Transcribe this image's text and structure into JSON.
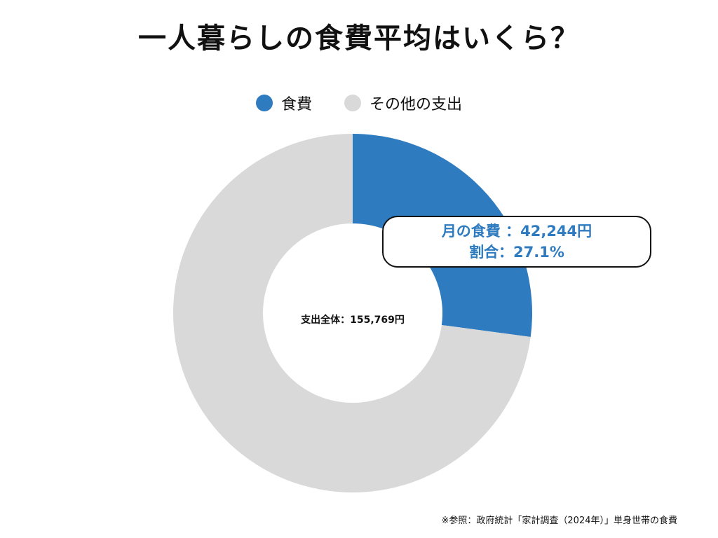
{
  "title": "一人暮らしの食費平均はいくら？",
  "source": "※参照：政府統計「家計調査（2024年）」単身世帯の食費",
  "center_label": "支出全体：155,769円",
  "callout": {
    "line1": "月の食費 ：42,244円",
    "line2": "割合：27.1%"
  },
  "colors": {
    "food": "#2f7bbf",
    "other": "#d9d9d9"
  },
  "chart_data": {
    "type": "pie",
    "title": "一人暮らしの食費平均はいくら？",
    "legend_position": "top",
    "total": 155769,
    "slices": [
      {
        "label": "食費",
        "value": 42244,
        "percent": 27.1,
        "color": "#2f7bbf"
      },
      {
        "label": "その他の支出",
        "value": 113525,
        "percent": 72.9,
        "color": "#d9d9d9"
      }
    ]
  }
}
